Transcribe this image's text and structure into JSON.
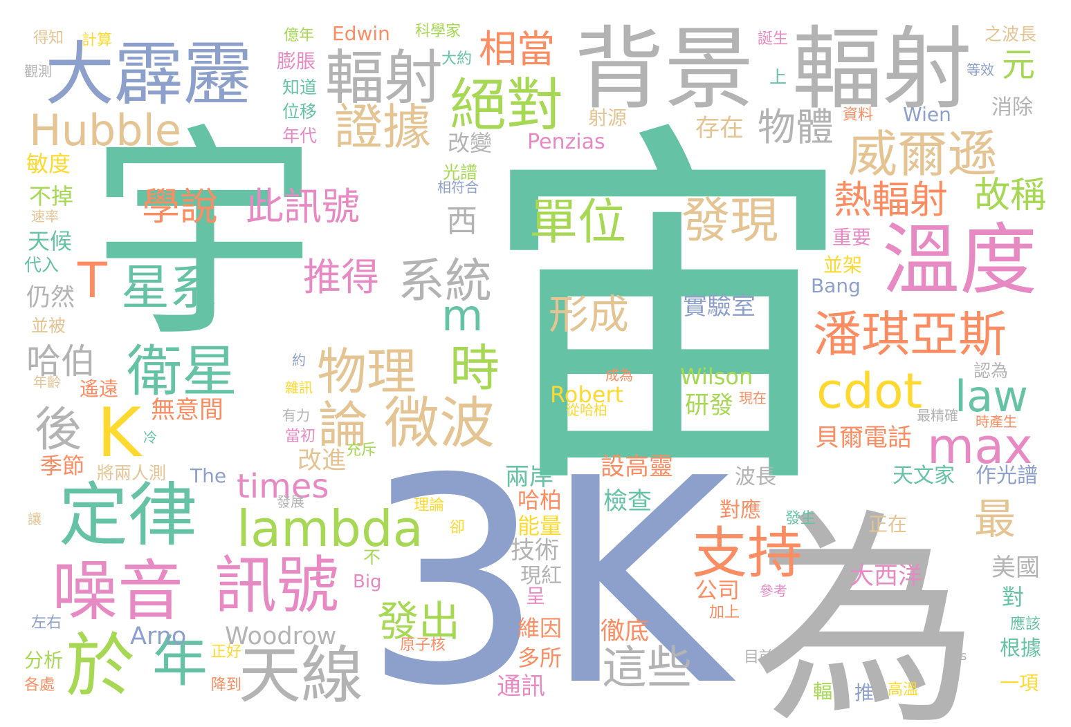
{
  "palette": {
    "green": "#66c2a5",
    "orange": "#fc8d62",
    "blue": "#8da0cb",
    "pink": "#e78ac3",
    "lime": "#a6d854",
    "yellow": "#ffd92f",
    "tan": "#e5c494",
    "gray": "#b3b3b3"
  },
  "words": [
    {
      "text": "宇",
      "color": "green"
    },
    {
      "text": "宙",
      "color": "green"
    },
    {
      "text": "3K",
      "color": "blue"
    },
    {
      "text": "為",
      "color": "gray"
    },
    {
      "text": "背景",
      "color": "gray"
    },
    {
      "text": "輻射",
      "color": "gray"
    },
    {
      "text": "大霹靂",
      "color": "blue"
    },
    {
      "text": "輻射",
      "color": "gray"
    },
    {
      "text": "Hubble",
      "color": "tan"
    },
    {
      "text": "證據",
      "color": "tan"
    },
    {
      "text": "絕對",
      "color": "lime"
    },
    {
      "text": "相當",
      "color": "orange"
    },
    {
      "text": "元",
      "color": "lime"
    },
    {
      "text": "威爾遜",
      "color": "tan"
    },
    {
      "text": "溫度",
      "color": "pink"
    },
    {
      "text": "物體",
      "color": "gray"
    },
    {
      "text": "存在",
      "color": "tan"
    },
    {
      "text": "熱輻射",
      "color": "orange"
    },
    {
      "text": "故稱",
      "color": "lime"
    },
    {
      "text": "潘琪亞斯",
      "color": "orange"
    },
    {
      "text": "學說",
      "color": "orange"
    },
    {
      "text": "此訊號",
      "color": "pink"
    },
    {
      "text": "單位",
      "color": "lime"
    },
    {
      "text": "發現",
      "color": "tan"
    },
    {
      "text": "星系",
      "color": "green"
    },
    {
      "text": "系統",
      "color": "gray"
    },
    {
      "text": "推得",
      "color": "pink"
    },
    {
      "text": "T",
      "color": "orange"
    },
    {
      "text": "m",
      "color": "green"
    },
    {
      "text": "形成",
      "color": "tan"
    },
    {
      "text": "實驗室",
      "color": "blue"
    },
    {
      "text": "衛星",
      "color": "green"
    },
    {
      "text": "物理",
      "color": "tan"
    },
    {
      "text": "時",
      "color": "lime"
    },
    {
      "text": "cdot",
      "color": "yellow"
    },
    {
      "text": "law",
      "color": "green"
    },
    {
      "text": "哈伯",
      "color": "gray"
    },
    {
      "text": "K",
      "color": "yellow"
    },
    {
      "text": "後",
      "color": "gray"
    },
    {
      "text": "論",
      "color": "tan"
    },
    {
      "text": "微波",
      "color": "tan"
    },
    {
      "text": "max",
      "color": "pink"
    },
    {
      "text": "定律",
      "color": "green"
    },
    {
      "text": "lambda",
      "color": "lime"
    },
    {
      "text": "times",
      "color": "pink"
    },
    {
      "text": "最",
      "color": "tan"
    },
    {
      "text": "支持",
      "color": "orange"
    },
    {
      "text": "噪音",
      "color": "pink"
    },
    {
      "text": "訊號",
      "color": "pink"
    },
    {
      "text": "於",
      "color": "lime"
    },
    {
      "text": "年",
      "color": "green"
    },
    {
      "text": "天線",
      "color": "gray"
    },
    {
      "text": "發出",
      "color": "lime"
    },
    {
      "text": "這些",
      "color": "gray"
    },
    {
      "text": "Woodrow",
      "color": "gray"
    },
    {
      "text": "Arno",
      "color": "blue"
    },
    {
      "text": "Edwin",
      "color": "orange"
    },
    {
      "text": "Penzias",
      "color": "pink"
    },
    {
      "text": "Wilson",
      "color": "lime"
    },
    {
      "text": "Robert",
      "color": "yellow"
    },
    {
      "text": "Wien",
      "color": "blue"
    },
    {
      "text": "Bang",
      "color": "blue"
    },
    {
      "text": "Big",
      "color": "pink"
    },
    {
      "text": "The",
      "color": "blue"
    },
    {
      "text": "無意間",
      "color": "orange"
    },
    {
      "text": "研發",
      "color": "lime"
    },
    {
      "text": "貝爾電話",
      "color": "orange"
    },
    {
      "text": "改進",
      "color": "tan"
    },
    {
      "text": "兩岸",
      "color": "green"
    },
    {
      "text": "設高靈",
      "color": "orange"
    },
    {
      "text": "檢查",
      "color": "green"
    },
    {
      "text": "哈柏",
      "color": "orange"
    },
    {
      "text": "能量",
      "color": "yellow"
    },
    {
      "text": "技術",
      "color": "gray"
    },
    {
      "text": "現紅",
      "color": "gray"
    },
    {
      "text": "呈",
      "color": "pink"
    },
    {
      "text": "維因",
      "color": "orange"
    },
    {
      "text": "多所",
      "color": "orange"
    },
    {
      "text": "通訊",
      "color": "pink"
    },
    {
      "text": "徹底",
      "color": "orange"
    },
    {
      "text": "公司",
      "color": "orange"
    },
    {
      "text": "大西洋",
      "color": "pink"
    },
    {
      "text": "天文家",
      "color": "green"
    },
    {
      "text": "作光譜",
      "color": "blue"
    },
    {
      "text": "波長",
      "color": "gray"
    },
    {
      "text": "對應",
      "color": "orange"
    },
    {
      "text": "正在",
      "color": "tan"
    },
    {
      "text": "美國",
      "color": "gray"
    },
    {
      "text": "對",
      "color": "green"
    },
    {
      "text": "應該",
      "color": "green"
    },
    {
      "text": "根據",
      "color": "green"
    },
    {
      "text": "一項",
      "color": "yellow"
    },
    {
      "text": "推",
      "color": "blue"
    },
    {
      "text": "高溫",
      "color": "yellow"
    },
    {
      "text": "輻",
      "color": "lime"
    },
    {
      "text": "發生",
      "color": "green"
    },
    {
      "text": "參考",
      "color": "pink"
    },
    {
      "text": "加上",
      "color": "orange"
    },
    {
      "text": "目前",
      "color": "gray"
    },
    {
      "text": "s",
      "color": "gray"
    },
    {
      "text": "得知",
      "color": "tan"
    },
    {
      "text": "計算",
      "color": "yellow"
    },
    {
      "text": "觀測",
      "color": "gray"
    },
    {
      "text": "億年",
      "color": "lime"
    },
    {
      "text": "膨脹",
      "color": "pink"
    },
    {
      "text": "大約",
      "color": "green"
    },
    {
      "text": "科學家",
      "color": "lime"
    },
    {
      "text": "誕生",
      "color": "pink"
    },
    {
      "text": "之波長",
      "color": "tan"
    },
    {
      "text": "上",
      "color": "green"
    },
    {
      "text": "等效",
      "color": "blue"
    },
    {
      "text": "知道",
      "color": "green"
    },
    {
      "text": "位移",
      "color": "green"
    },
    {
      "text": "年代",
      "color": "pink"
    },
    {
      "text": "射源",
      "color": "tan"
    },
    {
      "text": "資料",
      "color": "orange"
    },
    {
      "text": "消除",
      "color": "gray"
    },
    {
      "text": "改變",
      "color": "gray"
    },
    {
      "text": "光譜",
      "color": "lime"
    },
    {
      "text": "相符合",
      "color": "blue"
    },
    {
      "text": "西",
      "color": "gray"
    },
    {
      "text": "敏度",
      "color": "yellow"
    },
    {
      "text": "不掉",
      "color": "lime"
    },
    {
      "text": "速率",
      "color": "tan"
    },
    {
      "text": "天候",
      "color": "green"
    },
    {
      "text": "代入",
      "color": "green"
    },
    {
      "text": "仍然",
      "color": "gray"
    },
    {
      "text": "並被",
      "color": "tan"
    },
    {
      "text": "約",
      "color": "blue"
    },
    {
      "text": "年齡",
      "color": "tan"
    },
    {
      "text": "遙遠",
      "color": "orange"
    },
    {
      "text": "雜訊",
      "color": "yellow"
    },
    {
      "text": "有力",
      "color": "gray"
    },
    {
      "text": "當初",
      "color": "pink"
    },
    {
      "text": "冷",
      "color": "green"
    },
    {
      "text": "充斥",
      "color": "lime"
    },
    {
      "text": "季節",
      "color": "orange"
    },
    {
      "text": "將兩人測",
      "color": "tan"
    },
    {
      "text": "發展",
      "color": "gray"
    },
    {
      "text": "理論",
      "color": "yellow"
    },
    {
      "text": "卻",
      "color": "yellow"
    },
    {
      "text": "讓",
      "color": "tan"
    },
    {
      "text": "不",
      "color": "lime"
    },
    {
      "text": "左右",
      "color": "blue"
    },
    {
      "text": "分析",
      "color": "lime"
    },
    {
      "text": "正好",
      "color": "yellow"
    },
    {
      "text": "各處",
      "color": "orange"
    },
    {
      "text": "降到",
      "color": "orange"
    },
    {
      "text": "原子核",
      "color": "orange"
    },
    {
      "text": "成為",
      "color": "orange"
    },
    {
      "text": "現在",
      "color": "orange"
    },
    {
      "text": "從哈柏",
      "color": "yellow"
    },
    {
      "text": "認為",
      "color": "gray"
    },
    {
      "text": "最精確",
      "color": "gray"
    },
    {
      "text": "時產生",
      "color": "orange"
    },
    {
      "text": "重要",
      "color": "pink"
    },
    {
      "text": "並架",
      "color": "yellow"
    }
  ]
}
